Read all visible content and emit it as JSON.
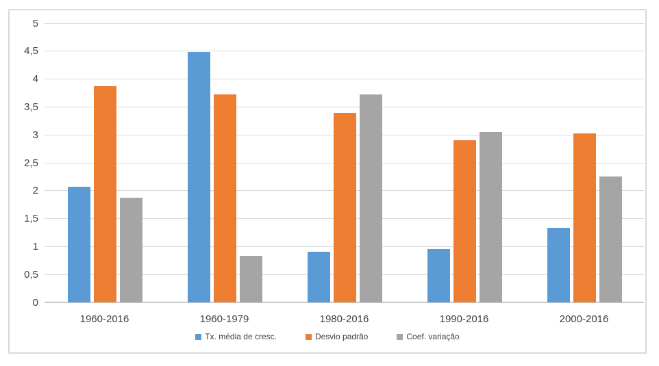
{
  "chart_data": {
    "type": "bar",
    "categories": [
      "1960-2016",
      "1960-1979",
      "1980-2016",
      "1990-2016",
      "2000-2016"
    ],
    "series": [
      {
        "name": "Tx. média de cresc.",
        "color": "#5B9BD5",
        "values": [
          2.07,
          4.48,
          0.91,
          0.96,
          1.34
        ]
      },
      {
        "name": "Desvio padrão",
        "color": "#ED7D31",
        "values": [
          3.87,
          3.73,
          3.39,
          2.9,
          3.03
        ]
      },
      {
        "name": "Coef. variação",
        "color": "#A5A5A5",
        "values": [
          1.87,
          0.83,
          3.72,
          3.05,
          2.25
        ]
      }
    ],
    "title": "",
    "xlabel": "",
    "ylabel": "",
    "ylim": [
      0,
      5
    ],
    "ytick_step": 0.5,
    "ytick_labels": [
      "0",
      "0,5",
      "1",
      "1,5",
      "2",
      "2,5",
      "3",
      "3,5",
      "4",
      "4,5",
      "5"
    ],
    "grid": true,
    "legend_position": "bottom"
  },
  "style": {
    "gridline_color": "#d9d9d9",
    "axis_line_color": "#c9c9c9",
    "frame_border_color": "#d9d9d9",
    "text_color": "#404040",
    "background": "#ffffff"
  }
}
